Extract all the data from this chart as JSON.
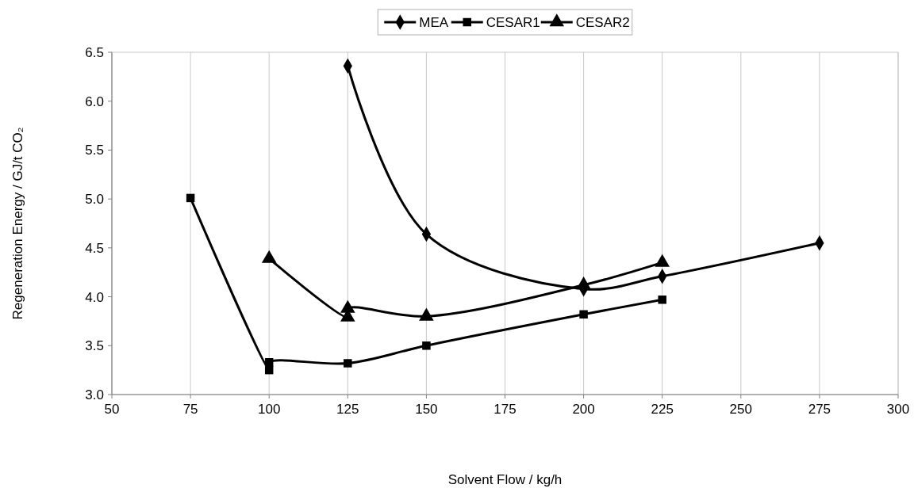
{
  "chart_data": {
    "type": "line",
    "xlabel": "Solvent Flow / kg/h",
    "ylabel": "Regeneration Energy / GJ/t CO₂",
    "xlim": [
      50,
      300
    ],
    "xticks": [
      50,
      75,
      100,
      125,
      150,
      175,
      200,
      225,
      250,
      275,
      300
    ],
    "ylim": [
      3.0,
      6.5
    ],
    "yticks": [
      {
        "value": 3,
        "label": "3.0"
      },
      {
        "value": 3.5,
        "label": "3.5"
      },
      {
        "value": 4,
        "label": "4.0"
      },
      {
        "value": 4.5,
        "label": "4.5"
      },
      {
        "value": 5,
        "label": "5.0"
      },
      {
        "value": 5.5,
        "label": "5.5"
      },
      {
        "value": 6,
        "label": "6.0"
      },
      {
        "value": 6.5,
        "label": "6.5"
      }
    ],
    "grid": "x",
    "legend": "top",
    "line_style": "solid",
    "series": [
      {
        "name": "MEA",
        "color": "#000000",
        "marker": "diamond",
        "x": [
          125,
          150,
          200,
          225,
          275
        ],
        "values": [
          6.36,
          4.64,
          4.08,
          4.21,
          4.55
        ]
      },
      {
        "name": "CESAR1",
        "color": "#000000",
        "marker": "square",
        "x": [
          75,
          100,
          100,
          125,
          150,
          200,
          225
        ],
        "values": [
          5.01,
          3.25,
          3.33,
          3.32,
          3.5,
          3.82,
          3.97
        ]
      },
      {
        "name": "CESAR2",
        "color": "#000000",
        "marker": "triangle",
        "x": [
          100,
          125,
          125,
          150,
          200,
          225
        ],
        "values": [
          4.39,
          3.79,
          3.88,
          3.8,
          4.12,
          4.35
        ]
      }
    ]
  }
}
